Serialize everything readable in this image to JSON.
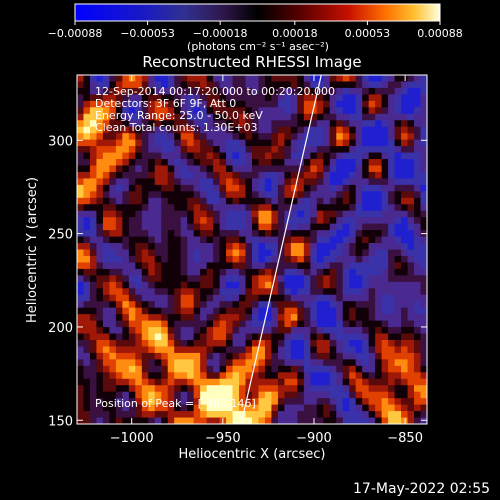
{
  "chart_data": {
    "type": "heatmap",
    "title": "Reconstructed RHESSI Image",
    "xlabel": "Heliocentric X (arcsec)",
    "ylabel": "Heliocentric Y (arcsec)",
    "xlim": [
      -1030,
      -838
    ],
    "ylim": [
      148,
      335
    ],
    "xticks": [
      -1000,
      -950,
      -900,
      -850
    ],
    "xtick_labels": [
      "−1000",
      "−950",
      "−900",
      "−850"
    ],
    "yticks": [
      150,
      200,
      250,
      300
    ],
    "ytick_labels": [
      "150",
      "200",
      "250",
      "300"
    ],
    "colorbar": {
      "range": [
        -0.00088,
        0.00088
      ],
      "ticks": [
        -0.00088,
        -0.00053,
        -0.00018,
        0.00018,
        0.00053,
        0.00088
      ],
      "tick_labels": [
        "−0.00088",
        "−0.00053",
        "−0.00018",
        "0.00018",
        "0.00053",
        "0.00088"
      ],
      "units": "(photons cm⁻² s⁻¹ asec⁻²)"
    },
    "limb_line": {
      "x": [
        -940,
        -896
      ],
      "y": [
        148,
        335
      ]
    },
    "annotations": [
      "12-Sep-2014 00:17:20.000 to 00:20:20.000",
      "Detectors: 3F 6F 9F, Att 0",
      "Energy Range: 25.0 - 50.0 keV",
      "Clean     Total counts: 1.30E+03"
    ],
    "peak_label": "Position of Peak = [-860,146]",
    "peak_position": [
      -860,
      146
    ],
    "colors": {
      "background": "#000000",
      "foreground": "#ffffff"
    }
  },
  "timestamp": "17-May-2022 02:55"
}
